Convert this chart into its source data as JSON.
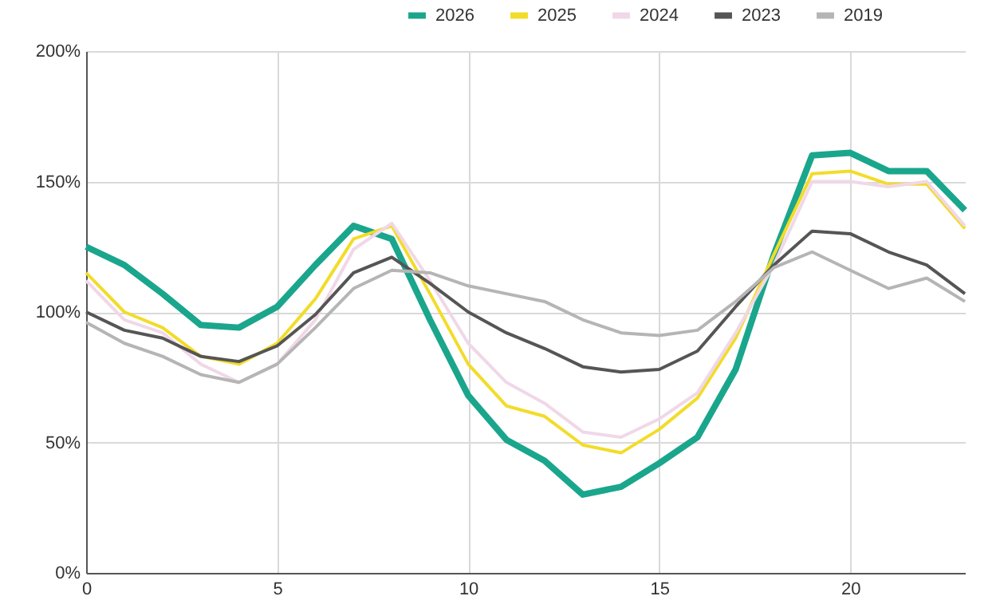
{
  "chart_data": {
    "type": "line",
    "x": [
      0,
      1,
      2,
      3,
      4,
      5,
      6,
      7,
      8,
      9,
      10,
      11,
      12,
      13,
      14,
      15,
      16,
      17,
      18,
      19,
      20,
      21,
      22,
      23
    ],
    "series": [
      {
        "name": "2026",
        "color": "#1aa68c",
        "values": [
          125,
          118,
          107,
          95,
          94,
          102,
          118,
          133,
          128,
          97,
          68,
          51,
          43,
          30,
          33,
          42,
          52,
          78,
          122,
          160,
          161,
          154,
          154,
          139
        ]
      },
      {
        "name": "2025",
        "color": "#f2dc2a",
        "values": [
          115,
          100,
          94,
          83,
          80,
          88,
          105,
          128,
          133,
          107,
          80,
          64,
          60,
          49,
          46,
          55,
          67,
          90,
          122,
          153,
          154,
          149,
          149,
          132
        ]
      },
      {
        "name": "2024",
        "color": "#f0d8e8",
        "values": [
          112,
          97,
          92,
          80,
          73,
          80,
          97,
          124,
          134,
          112,
          88,
          73,
          65,
          54,
          52,
          59,
          69,
          92,
          118,
          150,
          150,
          148,
          150,
          133
        ]
      },
      {
        "name": "2023",
        "color": "#555555",
        "values": [
          100,
          93,
          90,
          83,
          81,
          87,
          99,
          115,
          121,
          111,
          100,
          92,
          86,
          79,
          77,
          78,
          85,
          102,
          118,
          131,
          130,
          123,
          118,
          107
        ]
      },
      {
        "name": "2019",
        "color": "#b5b5b5",
        "values": [
          96,
          88,
          83,
          76,
          73,
          80,
          94,
          109,
          116,
          115,
          110,
          107,
          104,
          97,
          92,
          91,
          93,
          104,
          117,
          123,
          116,
          109,
          113,
          104
        ]
      }
    ],
    "xlim": [
      0,
      23
    ],
    "xticks": [
      0,
      5,
      10,
      15,
      20
    ],
    "ylim": [
      0,
      200
    ],
    "yticks": [
      {
        "value": 0,
        "label": "0%"
      },
      {
        "value": 50,
        "label": "50%"
      },
      {
        "value": 100,
        "label": "100%"
      },
      {
        "value": 150,
        "label": "150%"
      },
      {
        "value": 200,
        "label": "200%"
      }
    ],
    "grid": true,
    "legend": "top",
    "marker": "none",
    "line_style": "solid"
  }
}
